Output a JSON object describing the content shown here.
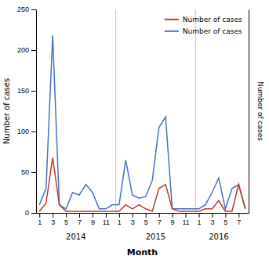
{
  "chart_data": {
    "type": "line",
    "categories": [
      "1",
      null,
      "3",
      null,
      "5",
      null,
      "7",
      null,
      "9",
      null,
      "11",
      null,
      "1",
      null,
      "3",
      null,
      "5",
      null,
      "7",
      null,
      "9",
      null,
      "11",
      null,
      "1",
      null,
      "3",
      null,
      "5",
      null,
      "7",
      null
    ],
    "series": [
      {
        "name": "Number of cases",
        "color": "#4472c4",
        "values": [
          10,
          30,
          218,
          10,
          5,
          25,
          22,
          35,
          25,
          5,
          5,
          10,
          10,
          65,
          22,
          18,
          20,
          40,
          105,
          118,
          5,
          5,
          5,
          5,
          5,
          10,
          25,
          43,
          5,
          30,
          35,
          5
        ]
      },
      {
        "name": "Number of cases",
        "color": "#c0392b",
        "values": [
          2,
          12,
          68,
          10,
          2,
          2,
          2,
          2,
          2,
          2,
          2,
          2,
          2,
          10,
          5,
          10,
          5,
          2,
          30,
          35,
          5,
          2,
          2,
          2,
          2,
          5,
          5,
          15,
          2,
          2,
          35,
          5
        ]
      }
    ],
    "xlabel": "Month",
    "ylabel": "Number of cases",
    "y2label": "Number of cases",
    "ylim": [
      0,
      250
    ],
    "yticks": [
      0,
      50,
      100,
      150,
      200,
      250
    ],
    "annotations": [
      {
        "text": "2014",
        "x": 5.5
      },
      {
        "text": "2015",
        "x": 17.5
      },
      {
        "text": "2016",
        "x": 27.0
      }
    ],
    "legend": "upper right",
    "grid": false
  }
}
